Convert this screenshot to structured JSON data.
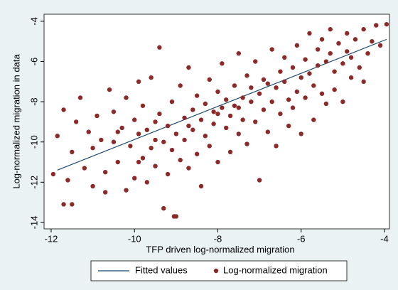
{
  "chart_data": {
    "type": "scatter",
    "xlabel": "TFP driven log-normalized migration",
    "ylabel": "Log-normalized migration in data",
    "xlim": [
      -12.17,
      -3.88
    ],
    "ylim": [
      -14.32,
      -3.65
    ],
    "xticks": [
      -12,
      -10,
      -8,
      -6,
      -4
    ],
    "yticks": [
      -14,
      -12,
      -10,
      -8,
      -6,
      -4
    ],
    "legend": "bottom",
    "series": [
      {
        "name": "Fitted values",
        "type": "line",
        "color": "#1a476f",
        "x": [
          -11.85,
          -3.95
        ],
        "values": [
          -11.4,
          -4.9
        ]
      },
      {
        "name": "Log-normalized migration",
        "type": "scatter",
        "color": "#8c2a2a",
        "x": [
          -11.95,
          -11.85,
          -11.7,
          -11.7,
          -11.5,
          -11.6,
          -11.5,
          -11.4,
          -11.3,
          -11.2,
          -11.1,
          -11.0,
          -11.0,
          -10.9,
          -10.8,
          -10.7,
          -10.7,
          -10.6,
          -10.5,
          -10.5,
          -10.4,
          -10.3,
          -10.2,
          -10.2,
          -10.1,
          -10.0,
          -10.0,
          -9.9,
          -9.9,
          -9.8,
          -9.8,
          -9.7,
          -9.7,
          -9.6,
          -9.6,
          -9.5,
          -9.5,
          -9.4,
          -9.4,
          -9.3,
          -9.3,
          -9.2,
          -9.2,
          -9.1,
          -9.1,
          -9.05,
          -9.0,
          -9.0,
          -8.9,
          -8.9,
          -8.8,
          -8.8,
          -8.7,
          -8.7,
          -8.6,
          -8.6,
          -8.5,
          -8.5,
          -8.4,
          -8.4,
          -8.3,
          -8.3,
          -8.2,
          -8.2,
          -8.1,
          -8.1,
          -8.0,
          -8.0,
          -7.9,
          -7.9,
          -7.8,
          -7.8,
          -7.7,
          -7.7,
          -7.6,
          -7.6,
          -7.5,
          -7.5,
          -7.4,
          -7.4,
          -7.3,
          -7.3,
          -7.2,
          -7.2,
          -7.1,
          -7.1,
          -7.0,
          -7.0,
          -6.9,
          -6.9,
          -6.8,
          -6.8,
          -6.7,
          -6.7,
          -6.6,
          -6.6,
          -6.5,
          -6.5,
          -6.4,
          -6.4,
          -6.3,
          -6.3,
          -6.2,
          -6.2,
          -6.1,
          -6.1,
          -6.0,
          -6.0,
          -5.9,
          -5.9,
          -5.8,
          -5.8,
          -5.7,
          -5.7,
          -5.6,
          -5.6,
          -5.5,
          -5.5,
          -5.4,
          -5.4,
          -5.3,
          -5.3,
          -5.2,
          -5.2,
          -5.1,
          -5.0,
          -5.0,
          -4.9,
          -4.9,
          -4.8,
          -4.8,
          -4.7,
          -4.6,
          -4.5,
          -4.5,
          -4.4,
          -4.3,
          -4.2,
          -4.1,
          -3.95,
          -9.9,
          -10.4,
          -8.0,
          -7.5,
          -8.7,
          -9.5
        ],
        "values": [
          -11.6,
          -9.7,
          -8.4,
          -13.1,
          -13.1,
          -11.9,
          -10.5,
          -9.0,
          -7.8,
          -11.3,
          -9.5,
          -12.2,
          -10.3,
          -8.7,
          -9.9,
          -11.5,
          -12.5,
          -7.4,
          -10.0,
          -8.5,
          -11.0,
          -9.3,
          -12.4,
          -7.8,
          -10.2,
          -8.9,
          -11.8,
          -9.6,
          -7.0,
          -10.8,
          -8.2,
          -9.4,
          -12.0,
          -10.3,
          -6.8,
          -9.0,
          -11.2,
          -5.3,
          -8.6,
          -10.0,
          -13.3,
          -9.2,
          -11.6,
          -8.0,
          -10.4,
          -13.7,
          -13.7,
          -9.6,
          -7.2,
          -10.9,
          -8.8,
          -9.9,
          -6.3,
          -11.3,
          -8.4,
          -9.4,
          -7.7,
          -10.6,
          -8.9,
          -12.2,
          -8.1,
          -9.7,
          -6.9,
          -10.2,
          -8.5,
          -9.1,
          -7.5,
          -11.0,
          -8.3,
          -6.1,
          -9.3,
          -7.9,
          -8.7,
          -10.5,
          -7.2,
          -8.2,
          -5.6,
          -9.6,
          -7.8,
          -8.9,
          -6.7,
          -10.1,
          -8.0,
          -7.3,
          -9.0,
          -6.0,
          -7.6,
          -11.9,
          -8.4,
          -6.9,
          -7.1,
          -9.5,
          -5.4,
          -8.0,
          -7.3,
          -10.2,
          -6.5,
          -8.6,
          -7.0,
          -5.8,
          -7.9,
          -9.2,
          -6.3,
          -8.3,
          -5.2,
          -7.5,
          -6.8,
          -9.6,
          -5.9,
          -7.8,
          -4.6,
          -6.6,
          -7.2,
          -8.9,
          -5.4,
          -6.2,
          -7.6,
          -4.9,
          -6.0,
          -8.1,
          -5.6,
          -4.4,
          -6.5,
          -7.4,
          -5.1,
          -6.1,
          -8.0,
          -5.5,
          -4.6,
          -6.8,
          -5.8,
          -4.9,
          -6.3,
          -4.4,
          -7.0,
          -5.6,
          -5.0,
          -4.2,
          -5.2,
          -4.15,
          -11.0,
          -9.5,
          -8.6,
          -8.3,
          -9.2,
          -9.9
        ]
      }
    ]
  }
}
